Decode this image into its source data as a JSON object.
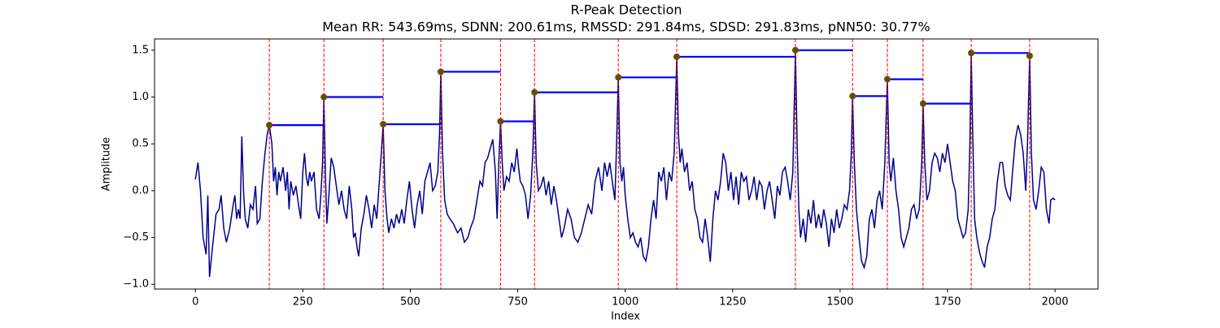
{
  "chart_data": {
    "type": "line",
    "title": "R-Peak Detection",
    "subtitle": "Mean RR: 543.69ms, SDNN: 200.61ms, RMSSD: 291.84ms, SDSD: 291.83ms, pNN50: 30.77%",
    "xlabel": "Index",
    "ylabel": "Amplitude",
    "xlim": [
      -95,
      2100
    ],
    "ylim": [
      -1.05,
      1.62
    ],
    "xticks": [
      0,
      250,
      500,
      750,
      1000,
      1250,
      1500,
      1750,
      2000
    ],
    "yticks": [
      {
        "value": -1.0,
        "label": "−1.0"
      },
      {
        "value": -0.5,
        "label": "−0.5"
      },
      {
        "value": 0.0,
        "label": "0.0"
      },
      0.5,
      {
        "value": 1.0,
        "label": "1.0"
      },
      1.5
    ],
    "signal": {
      "color": "#00008b",
      "x": [
        0,
        6,
        12,
        18,
        25,
        29,
        33,
        40,
        48,
        55,
        60,
        66,
        72,
        80,
        88,
        92,
        96,
        100,
        104,
        108,
        112,
        116,
        122,
        128,
        134,
        140,
        144,
        150,
        156,
        162,
        167,
        172,
        178,
        182,
        186,
        190,
        194,
        198,
        204,
        210,
        214,
        218,
        222,
        228,
        234,
        240,
        245,
        250,
        254,
        258,
        262,
        266,
        270,
        276,
        282,
        288,
        292,
        296,
        299,
        303,
        306,
        310,
        316,
        322,
        328,
        334,
        340,
        346,
        352,
        358,
        364,
        368,
        372,
        376,
        380,
        386,
        392,
        398,
        404,
        410,
        416,
        422,
        428,
        434,
        437,
        441,
        446,
        450,
        456,
        462,
        468,
        474,
        480,
        486,
        492,
        498,
        504,
        510,
        516,
        522,
        528,
        534,
        540,
        546,
        552,
        558,
        564,
        568,
        571,
        575,
        580,
        586,
        592,
        600,
        610,
        618,
        626,
        634,
        640,
        648,
        655,
        662,
        668,
        674,
        680,
        686,
        692,
        698,
        702,
        706,
        710,
        714,
        718,
        724,
        730,
        736,
        742,
        748,
        752,
        756,
        762,
        768,
        774,
        780,
        785,
        789,
        793,
        798,
        804,
        810,
        816,
        822,
        828,
        834,
        840,
        846,
        852,
        858,
        866,
        874,
        882,
        890,
        898,
        906,
        914,
        922,
        930,
        938,
        946,
        952,
        958,
        964,
        970,
        976,
        980,
        984,
        988,
        992,
        996,
        1000,
        1006,
        1012,
        1018,
        1024,
        1030,
        1036,
        1042,
        1048,
        1054,
        1060,
        1066,
        1072,
        1078,
        1084,
        1090,
        1096,
        1102,
        1108,
        1114,
        1120,
        1124,
        1128,
        1132,
        1138,
        1144,
        1150,
        1156,
        1162,
        1168,
        1174,
        1180,
        1186,
        1192,
        1198,
        1204,
        1210,
        1216,
        1222,
        1228,
        1234,
        1240,
        1246,
        1252,
        1258,
        1264,
        1270,
        1276,
        1282,
        1288,
        1294,
        1300,
        1306,
        1312,
        1318,
        1324,
        1330,
        1336,
        1342,
        1348,
        1354,
        1360,
        1366,
        1372,
        1378,
        1384,
        1390,
        1396,
        1400,
        1404,
        1408,
        1414,
        1420,
        1426,
        1432,
        1438,
        1444,
        1450,
        1456,
        1462,
        1468,
        1474,
        1480,
        1486,
        1492,
        1498,
        1504,
        1510,
        1516,
        1522,
        1526,
        1529,
        1533,
        1538,
        1544,
        1550,
        1556,
        1562,
        1568,
        1574,
        1580,
        1586,
        1592,
        1598,
        1604,
        1610,
        1614,
        1618,
        1624,
        1630,
        1636,
        1642,
        1648,
        1654,
        1660,
        1666,
        1672,
        1678,
        1684,
        1690,
        1693,
        1697,
        1702,
        1708,
        1714,
        1720,
        1726,
        1732,
        1738,
        1744,
        1750,
        1756,
        1762,
        1768,
        1774,
        1780,
        1786,
        1792,
        1798,
        1802,
        1805,
        1809,
        1813,
        1818,
        1824,
        1830,
        1836,
        1842,
        1848,
        1854,
        1860,
        1866,
        1872,
        1878,
        1884,
        1890,
        1896,
        1902,
        1908,
        1914,
        1920,
        1926,
        1932,
        1936,
        1941,
        1945,
        1950,
        1956,
        1962,
        1968,
        1974,
        1980,
        1986,
        1990,
        1996,
        2000
      ],
      "values": [
        0.12,
        0.3,
        0.0,
        -0.5,
        -0.68,
        -0.05,
        -0.92,
        -0.6,
        -0.25,
        -0.2,
        -0.05,
        -0.4,
        -0.55,
        -0.4,
        -0.15,
        -0.05,
        -0.3,
        -0.2,
        -0.3,
        0.58,
        0.0,
        -0.3,
        -0.4,
        -0.15,
        -0.2,
        0.05,
        -0.35,
        -0.3,
        0.1,
        0.4,
        0.6,
        0.7,
        0.5,
        0.1,
        0.25,
        -0.05,
        0.2,
        0.1,
        0.25,
        0.0,
        0.2,
        -0.2,
        0.1,
        -0.05,
        0.05,
        -0.15,
        -0.3,
        0.2,
        0.4,
        0.15,
        0.05,
        0.2,
        0.1,
        0.2,
        -0.2,
        -0.3,
        -0.05,
        0.3,
        1.0,
        0.1,
        -0.35,
        -0.1,
        0.35,
        0.25,
        0.05,
        -0.15,
        0.0,
        -0.2,
        -0.3,
        0.05,
        -0.2,
        -0.5,
        -0.45,
        -0.6,
        -0.7,
        -0.4,
        -0.25,
        -0.05,
        -0.2,
        -0.4,
        -0.15,
        -0.3,
        0.1,
        0.5,
        0.71,
        0.0,
        -0.3,
        -0.45,
        -0.3,
        -0.4,
        -0.25,
        -0.35,
        -0.2,
        -0.35,
        -0.1,
        0.1,
        -0.2,
        -0.4,
        -0.15,
        0.0,
        -0.25,
        0.1,
        0.2,
        0.3,
        0.0,
        0.05,
        0.2,
        0.6,
        1.27,
        0.4,
        -0.1,
        -0.25,
        -0.3,
        -0.35,
        -0.45,
        -0.4,
        -0.55,
        -0.5,
        -0.4,
        -0.3,
        -0.1,
        0.1,
        0.05,
        0.3,
        0.35,
        0.45,
        0.55,
        0.2,
        -0.3,
        0.3,
        0.74,
        0.3,
        0.0,
        0.15,
        0.1,
        0.3,
        0.2,
        0.45,
        0.25,
        0.1,
        0.05,
        -0.05,
        -0.3,
        -0.05,
        0.4,
        1.05,
        0.3,
        0.0,
        0.05,
        0.15,
        -0.05,
        0.1,
        -0.15,
        0.05,
        -0.1,
        -0.3,
        -0.5,
        -0.4,
        -0.2,
        -0.3,
        -0.5,
        -0.55,
        -0.45,
        -0.3,
        -0.15,
        -0.25,
        0.1,
        0.25,
        0.0,
        0.3,
        0.15,
        0.3,
        0.1,
        -0.1,
        0.5,
        1.21,
        0.3,
        0.1,
        0.25,
        -0.05,
        -0.3,
        -0.5,
        -0.45,
        -0.55,
        -0.6,
        -0.5,
        -0.7,
        -0.75,
        -0.6,
        -0.3,
        -0.1,
        -0.3,
        0.2,
        0.1,
        0.25,
        -0.1,
        0.2,
        0.1,
        0.4,
        1.43,
        0.6,
        0.3,
        0.45,
        0.2,
        0.3,
        0.0,
        0.1,
        -0.2,
        -0.3,
        -0.5,
        -0.55,
        -0.3,
        -0.5,
        -0.76,
        -0.3,
        0.0,
        -0.1,
        0.1,
        0.4,
        0.3,
        0.0,
        0.2,
        -0.1,
        0.15,
        -0.15,
        0.2,
        0.1,
        0.15,
        -0.1,
        0.0,
        0.15,
        -0.1,
        0.1,
        0.05,
        -0.2,
        0.0,
        0.1,
        -0.1,
        -0.3,
        0.05,
        -0.05,
        0.2,
        0.25,
        0.1,
        -0.1,
        0.2,
        1.5,
        0.5,
        -0.2,
        -0.5,
        -0.3,
        -0.55,
        -0.2,
        -0.35,
        -0.1,
        -0.4,
        -0.25,
        -0.4,
        -0.2,
        -0.35,
        -0.6,
        -0.3,
        -0.45,
        -0.2,
        -0.4,
        -0.3,
        -0.15,
        -0.2,
        0.0,
        0.4,
        1.01,
        0.3,
        -0.2,
        -0.5,
        -0.75,
        -0.82,
        -0.7,
        -0.3,
        -0.2,
        -0.4,
        -0.1,
        0.0,
        -0.2,
        0.3,
        1.19,
        0.3,
        0.1,
        0.35,
        0.0,
        -0.2,
        -0.5,
        -0.6,
        -0.5,
        -0.4,
        -0.2,
        -0.15,
        -0.3,
        -0.2,
        0.3,
        0.93,
        0.3,
        -0.1,
        0.0,
        0.3,
        0.4,
        0.35,
        0.2,
        0.4,
        0.3,
        0.5,
        0.3,
        0.1,
        0.0,
        -0.3,
        -0.4,
        -0.5,
        -0.45,
        -0.2,
        0.5,
        1.47,
        0.5,
        -0.3,
        -0.5,
        -0.65,
        -0.75,
        -0.82,
        -0.6,
        -0.5,
        -0.3,
        -0.2,
        0.1,
        0.3,
        0.3,
        0.05,
        -0.05,
        -0.1,
        0.25,
        0.55,
        0.7,
        0.6,
        0.4,
        0.0,
        0.5,
        1.44,
        0.4,
        -0.1,
        -0.2,
        0.0,
        0.25,
        0.2,
        -0.2,
        -0.35,
        -0.1,
        -0.08,
        -0.1
      ]
    },
    "peaks": {
      "color": "green",
      "edgecolor": "red",
      "line_color": "red",
      "interval_color": "blue",
      "x": [
        172,
        299,
        437,
        571,
        710,
        789,
        984,
        1120,
        1396,
        1529,
        1610,
        1693,
        1805,
        1941
      ],
      "values": [
        0.7,
        1.0,
        0.71,
        1.27,
        0.74,
        1.05,
        1.21,
        1.43,
        1.5,
        1.01,
        1.19,
        0.93,
        1.47,
        1.44
      ]
    }
  }
}
